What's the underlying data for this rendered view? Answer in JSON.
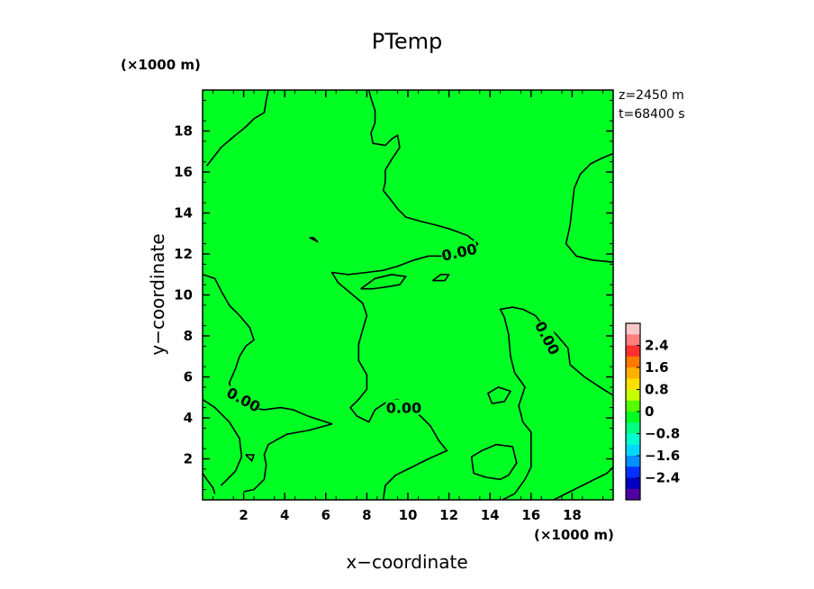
{
  "chart_data": {
    "type": "contour",
    "title": "PTemp",
    "xlabel": "x−coordinate",
    "ylabel": "y−coordinate",
    "x_unit": "(×1000 m)",
    "y_unit": "(×1000 m)",
    "xlim": [
      0,
      20
    ],
    "ylim": [
      0,
      20
    ],
    "x_ticks": [
      2,
      4,
      6,
      8,
      10,
      12,
      14,
      16,
      18
    ],
    "y_ticks": [
      2,
      4,
      6,
      8,
      10,
      12,
      14,
      16,
      18
    ],
    "info": [
      "z=2450 m",
      "t=68400 s"
    ],
    "field_color": "#00ff22",
    "contour_level": 0.0,
    "contour_labels": [
      "0.00",
      "0.00",
      "0.00",
      "0.00"
    ],
    "colorbar": {
      "ticks": [
        "2.4",
        "1.6",
        "0.8",
        "0",
        "−0.8",
        "−1.6",
        "−2.4"
      ],
      "colors": [
        "#f8c8c8",
        "#ff7f7f",
        "#ff3030",
        "#ff7a00",
        "#ffb000",
        "#ffe000",
        "#c8ff00",
        "#55ff00",
        "#00ff22",
        "#00ff80",
        "#00ffd0",
        "#00d8ff",
        "#0090ff",
        "#0030ff",
        "#0000c0",
        "#5000a0"
      ]
    },
    "contours": [
      [
        [
          0.2,
          16.3
        ],
        [
          0.9,
          17.2
        ],
        [
          1.6,
          17.8
        ],
        [
          2.1,
          18.2
        ],
        [
          2.5,
          18.6
        ],
        [
          3.0,
          18.9
        ],
        [
          3.1,
          19.5
        ],
        [
          3.2,
          20.0
        ]
      ],
      [
        [
          8.1,
          20.0
        ],
        [
          8.2,
          19.6
        ],
        [
          8.4,
          19.0
        ],
        [
          8.4,
          18.4
        ],
        [
          8.2,
          17.9
        ],
        [
          8.3,
          17.4
        ],
        [
          8.9,
          17.3
        ],
        [
          9.2,
          17.6
        ],
        [
          9.5,
          17.8
        ],
        [
          9.6,
          17.2
        ],
        [
          9.2,
          16.6
        ],
        [
          8.9,
          16.1
        ],
        [
          8.9,
          15.5
        ],
        [
          8.8,
          15.1
        ],
        [
          9.2,
          14.6
        ],
        [
          9.5,
          14.2
        ],
        [
          9.9,
          13.8
        ],
        [
          10.6,
          13.6
        ],
        [
          11.4,
          13.4
        ],
        [
          12.1,
          13.2
        ],
        [
          12.9,
          12.9
        ],
        [
          13.4,
          12.5
        ],
        [
          13.1,
          12.1
        ],
        [
          12.4,
          12.0
        ],
        [
          11.8,
          11.9
        ],
        [
          11.0,
          11.9
        ],
        [
          10.3,
          11.7
        ],
        [
          9.5,
          11.4
        ],
        [
          8.8,
          11.2
        ],
        [
          8.0,
          11.1
        ],
        [
          7.1,
          11.0
        ],
        [
          6.3,
          11.1
        ],
        [
          6.6,
          10.6
        ],
        [
          7.2,
          10.1
        ],
        [
          7.8,
          9.6
        ],
        [
          8.0,
          9.0
        ],
        [
          7.8,
          8.3
        ],
        [
          7.6,
          7.6
        ],
        [
          7.6,
          6.8
        ],
        [
          8.0,
          6.1
        ],
        [
          8.0,
          5.4
        ],
        [
          7.6,
          4.9
        ],
        [
          7.2,
          4.5
        ],
        [
          7.5,
          4.1
        ],
        [
          8.1,
          3.8
        ],
        [
          8.4,
          4.4
        ],
        [
          9.0,
          4.8
        ],
        [
          9.5,
          4.9
        ],
        [
          10.0,
          4.6
        ],
        [
          10.6,
          4.1
        ],
        [
          11.1,
          3.6
        ],
        [
          11.5,
          2.9
        ],
        [
          11.9,
          2.4
        ],
        [
          11.0,
          2.0
        ],
        [
          10.2,
          1.6
        ],
        [
          9.4,
          1.2
        ],
        [
          8.9,
          0.7
        ],
        [
          8.8,
          0.0
        ]
      ],
      [
        [
          7.7,
          10.3
        ],
        [
          8.4,
          10.8
        ],
        [
          9.2,
          11.0
        ],
        [
          9.9,
          10.9
        ],
        [
          9.6,
          10.5
        ],
        [
          9.0,
          10.4
        ],
        [
          8.3,
          10.3
        ],
        [
          7.7,
          10.3
        ]
      ],
      [
        [
          11.2,
          10.7
        ],
        [
          11.6,
          11.0
        ],
        [
          12.0,
          11.0
        ],
        [
          11.8,
          10.7
        ],
        [
          11.2,
          10.7
        ]
      ],
      [
        [
          5.2,
          12.8
        ],
        [
          5.6,
          12.6
        ],
        [
          5.4,
          12.8
        ],
        [
          5.2,
          12.8
        ]
      ],
      [
        [
          20.0,
          16.9
        ],
        [
          19.5,
          16.7
        ],
        [
          18.9,
          16.4
        ],
        [
          18.4,
          15.9
        ],
        [
          18.1,
          15.2
        ],
        [
          18.0,
          14.3
        ],
        [
          17.9,
          13.4
        ],
        [
          17.7,
          12.5
        ],
        [
          18.2,
          11.9
        ],
        [
          19.0,
          11.7
        ],
        [
          20.0,
          11.6
        ]
      ],
      [
        [
          0.0,
          11.0
        ],
        [
          0.6,
          10.8
        ],
        [
          0.9,
          10.2
        ],
        [
          1.3,
          9.5
        ],
        [
          1.8,
          9.0
        ],
        [
          2.3,
          8.4
        ],
        [
          2.5,
          7.8
        ],
        [
          2.1,
          7.5
        ],
        [
          1.8,
          7.0
        ],
        [
          1.6,
          6.4
        ],
        [
          1.3,
          5.7
        ],
        [
          1.5,
          5.2
        ],
        [
          1.9,
          4.8
        ],
        [
          2.3,
          4.5
        ],
        [
          3.0,
          4.4
        ],
        [
          3.8,
          4.5
        ],
        [
          4.4,
          4.4
        ],
        [
          5.1,
          4.1
        ],
        [
          6.3,
          3.7
        ],
        [
          5.2,
          3.4
        ],
        [
          4.1,
          3.2
        ],
        [
          3.2,
          2.7
        ],
        [
          3.0,
          2.2
        ],
        [
          3.1,
          1.7
        ],
        [
          3.0,
          1.0
        ],
        [
          2.5,
          0.5
        ],
        [
          2.0,
          0.4
        ]
      ],
      [
        [
          0.0,
          4.9
        ],
        [
          0.6,
          4.5
        ],
        [
          1.3,
          3.8
        ],
        [
          1.8,
          3.0
        ],
        [
          1.9,
          2.1
        ],
        [
          1.6,
          1.4
        ],
        [
          1.2,
          1.0
        ],
        [
          0.9,
          0.7
        ]
      ],
      [
        [
          0.0,
          1.3
        ],
        [
          0.2,
          1.0
        ],
        [
          0.5,
          0.6
        ],
        [
          0.6,
          0.3
        ]
      ],
      [
        [
          2.1,
          2.2
        ],
        [
          2.5,
          2.2
        ],
        [
          2.4,
          1.9
        ],
        [
          2.1,
          2.2
        ]
      ],
      [
        [
          14.5,
          1.0
        ],
        [
          14.9,
          1.2
        ],
        [
          15.3,
          1.8
        ],
        [
          15.1,
          2.6
        ],
        [
          14.3,
          2.7
        ],
        [
          13.6,
          2.4
        ],
        [
          13.1,
          2.1
        ],
        [
          13.2,
          1.3
        ],
        [
          13.8,
          1.1
        ],
        [
          14.5,
          1.0
        ]
      ],
      [
        [
          14.1,
          4.7
        ],
        [
          14.7,
          4.8
        ],
        [
          15.0,
          5.3
        ],
        [
          14.4,
          5.5
        ],
        [
          13.9,
          5.2
        ],
        [
          14.1,
          4.7
        ]
      ],
      [
        [
          14.6,
          0.0
        ],
        [
          15.2,
          0.3
        ],
        [
          15.7,
          1.0
        ],
        [
          16.0,
          1.6
        ],
        [
          16.0,
          2.5
        ],
        [
          16.0,
          3.3
        ],
        [
          15.6,
          3.8
        ],
        [
          15.4,
          4.6
        ],
        [
          15.7,
          5.5
        ],
        [
          15.2,
          6.2
        ],
        [
          15.0,
          7.0
        ],
        [
          14.9,
          8.1
        ],
        [
          14.7,
          8.9
        ],
        [
          14.5,
          9.3
        ],
        [
          15.1,
          9.4
        ],
        [
          15.6,
          9.3
        ],
        [
          16.2,
          9.0
        ],
        [
          16.6,
          8.5
        ],
        [
          17.2,
          8.1
        ],
        [
          17.8,
          7.4
        ],
        [
          17.9,
          6.6
        ],
        [
          18.6,
          6.0
        ],
        [
          19.5,
          5.4
        ],
        [
          20.0,
          5.1
        ]
      ],
      [
        [
          17.1,
          0.0
        ],
        [
          17.9,
          0.4
        ],
        [
          18.9,
          0.9
        ],
        [
          19.7,
          1.3
        ],
        [
          20.0,
          1.6
        ]
      ]
    ]
  }
}
